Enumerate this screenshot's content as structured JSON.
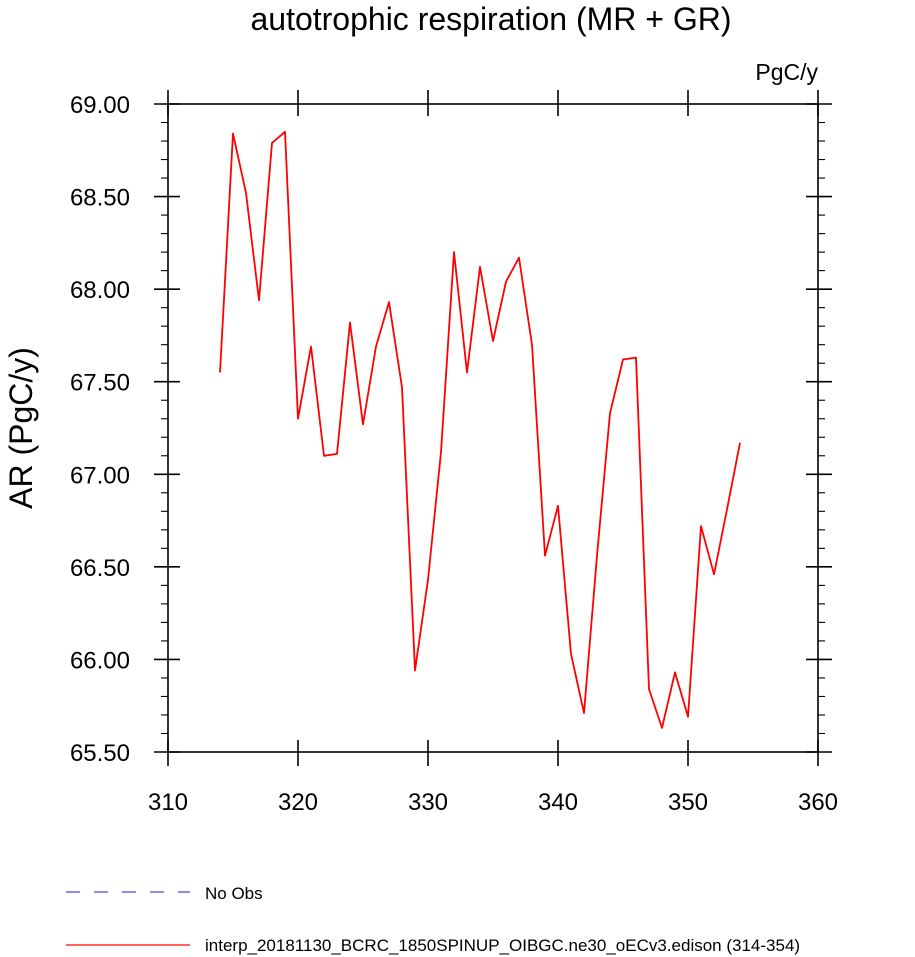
{
  "chart_data": {
    "type": "line",
    "title": "autotrophic respiration (MR + GR)",
    "units": "PgC/y",
    "xlabel": "",
    "ylabel": "AR  (PgC/y)",
    "xlim": [
      310,
      360
    ],
    "ylim": [
      65.5,
      69.0
    ],
    "x_ticks": [
      "310",
      "320",
      "330",
      "340",
      "350",
      "360"
    ],
    "y_ticks": [
      "65.50",
      "66.00",
      "66.50",
      "67.00",
      "67.50",
      "68.00",
      "68.50",
      "69.00"
    ],
    "series": [
      {
        "name": "interp_20181130_BCRC_1850SPINUP_OIBGC.ne30_oECv3.edison (314-354)",
        "color": "#ff0000",
        "dash": "solid",
        "x": [
          314,
          315,
          316,
          317,
          318,
          319,
          320,
          321,
          322,
          323,
          324,
          325,
          326,
          327,
          328,
          329,
          330,
          331,
          332,
          333,
          334,
          335,
          336,
          337,
          338,
          339,
          340,
          341,
          342,
          343,
          344,
          345,
          346,
          347,
          348,
          349,
          350,
          351,
          352,
          353,
          354
        ],
        "values": [
          67.55,
          68.84,
          68.52,
          67.94,
          68.79,
          68.85,
          67.3,
          67.69,
          67.1,
          67.11,
          67.82,
          67.27,
          67.69,
          67.93,
          67.47,
          65.94,
          66.43,
          67.12,
          68.2,
          67.55,
          68.12,
          67.72,
          68.04,
          68.17,
          67.7,
          66.56,
          66.83,
          66.03,
          65.71,
          66.56,
          67.33,
          67.62,
          67.63,
          65.84,
          65.63,
          65.93,
          65.69,
          66.72,
          66.46,
          66.81,
          67.17
        ]
      },
      {
        "name": "No Obs",
        "color": "#4a4adc",
        "dash": "dashed",
        "x": [],
        "values": []
      }
    ],
    "legend_position": "bottom"
  }
}
